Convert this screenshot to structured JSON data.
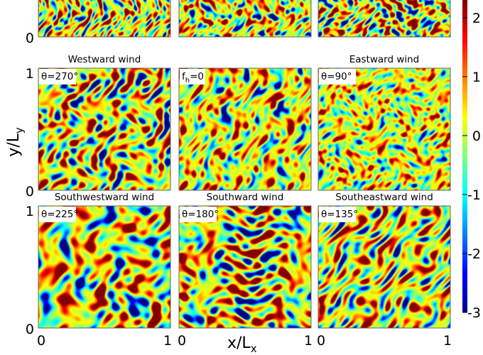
{
  "chart_data": {
    "type": "heatmap",
    "colormap": "jet",
    "color_range": [
      -3,
      2.3
    ],
    "colorbar_ticks": [
      "2",
      "1",
      "0",
      "-1",
      "-2",
      "-3"
    ],
    "colorbar_values": [
      2,
      1,
      0,
      -1,
      -2,
      -3
    ],
    "xlabel": "x/L",
    "xlabel_sub": "x",
    "ylabel": "y/L",
    "ylabel_sub": "y",
    "panels": [
      {
        "title": "",
        "tag_theta": "",
        "tag_f": "",
        "row": 0,
        "col": 0,
        "seed": 11,
        "grain": 0.18,
        "orient": 0,
        "intensity": 1.0
      },
      {
        "title": "",
        "tag_theta": "",
        "tag_f": "",
        "row": 0,
        "col": 1,
        "seed": 23,
        "grain": 0.18,
        "orient": 0,
        "intensity": 0.9
      },
      {
        "title": "",
        "tag_theta": "",
        "tag_f": "",
        "row": 0,
        "col": 2,
        "seed": 37,
        "grain": 0.18,
        "orient": 0,
        "intensity": 1.0
      },
      {
        "title": "Westward wind",
        "tag_theta": "θ=270°",
        "tag_f": "",
        "row": 1,
        "col": 0,
        "seed": 41,
        "grain": 0.33,
        "orient": 0.1,
        "intensity": 1.15
      },
      {
        "title": "",
        "tag_theta": "",
        "tag_f": "f",
        "tag_f_sub": "h",
        "tag_f_rest": "=0",
        "row": 1,
        "col": 1,
        "seed": 53,
        "grain": 0.22,
        "orient": 0.0,
        "intensity": 1.0
      },
      {
        "title": "Eastward wind",
        "tag_theta": "θ=90°",
        "tag_f": "",
        "row": 1,
        "col": 2,
        "seed": 67,
        "grain": 0.22,
        "orient": 0.0,
        "intensity": 0.95
      },
      {
        "title": "Southwestward wind",
        "tag_theta": "θ=225°",
        "tag_f": "",
        "row": 2,
        "col": 0,
        "seed": 79,
        "grain": 0.4,
        "orient": -0.8,
        "intensity": 1.15
      },
      {
        "title": "Southward wind",
        "tag_theta": "θ=180°",
        "tag_f": "",
        "row": 2,
        "col": 1,
        "seed": 83,
        "grain": 0.33,
        "orient": 0.4,
        "intensity": 1.15
      },
      {
        "title": "Southeastward wind",
        "tag_theta": "θ=135°",
        "tag_f": "",
        "row": 2,
        "col": 2,
        "seed": 97,
        "grain": 0.27,
        "orient": 0.7,
        "intensity": 1.0
      }
    ],
    "y_ticks_left": [
      {
        "row": 0,
        "label": "0"
      },
      {
        "row": 1,
        "label": "1"
      },
      {
        "row": 1,
        "label": "0",
        "bottom": true
      },
      {
        "row": 2,
        "label": "1"
      },
      {
        "row": 2,
        "label": "0",
        "bottom": true
      }
    ],
    "x_ticks_bottom": [
      {
        "col": 0,
        "label": "0",
        "pos": "left"
      },
      {
        "col": 0,
        "label": "1",
        "pos": "right"
      },
      {
        "col": 1,
        "label": "0",
        "pos": "left"
      },
      {
        "col": 1,
        "label": "1",
        "pos": "right"
      },
      {
        "col": 2,
        "label": "0",
        "pos": "left"
      },
      {
        "col": 2,
        "label": "1",
        "pos": "right"
      }
    ]
  }
}
